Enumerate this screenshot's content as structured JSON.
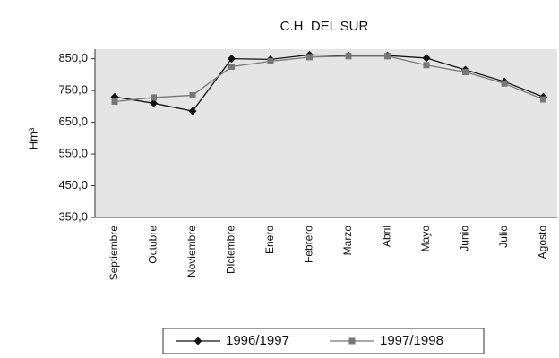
{
  "chart_data": {
    "type": "line",
    "title": "C.H. DEL SUR",
    "y_label": "Hm³",
    "categories": [
      "Septiembre",
      "Octubre",
      "Noviembre",
      "Diciembre",
      "Enero",
      "Febrero",
      "Marzo",
      "Abril",
      "Mayo",
      "Junio",
      "Julio",
      "Agosto"
    ],
    "series": [
      {
        "name": "1996/1997",
        "color": "#111111",
        "marker": "diamond",
        "values": [
          730,
          710,
          685,
          850,
          848,
          862,
          860,
          860,
          852,
          815,
          778,
          730
        ]
      },
      {
        "name": "1997/1998",
        "color": "#777777",
        "marker": "square",
        "values": [
          715,
          728,
          735,
          825,
          842,
          855,
          858,
          858,
          830,
          808,
          772,
          722
        ]
      }
    ],
    "ylim": [
      350,
      880
    ],
    "yticks": [
      {
        "value": 350,
        "label": "350,0"
      },
      {
        "value": 450,
        "label": "450,0"
      },
      {
        "value": 550,
        "label": "550,0"
      },
      {
        "value": 650,
        "label": "650,0"
      },
      {
        "value": 750,
        "label": "750,0"
      },
      {
        "value": 850,
        "label": "850,0"
      }
    ],
    "grid": false,
    "legend": "bottom"
  }
}
